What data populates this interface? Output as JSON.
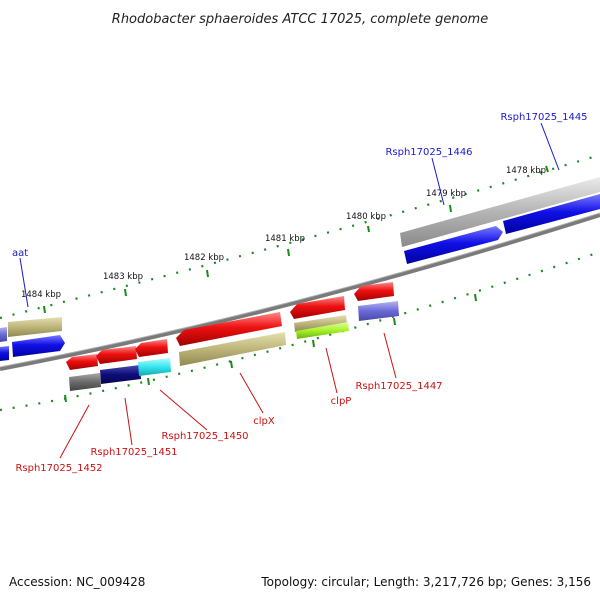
{
  "title": "Rhodobacter sphaeroides ATCC 17025, complete genome",
  "footer": {
    "accession": "Accession: NC_009428",
    "summary": "Topology: circular; Length: 3,217,726 bp; Genes: 3,156"
  },
  "scale_ticks": [
    "1478 kbp",
    "1479 kbp",
    "1480 kbp",
    "1481 kbp",
    "1482 kbp",
    "1483 kbp",
    "1484 kbp"
  ],
  "gene_labels": {
    "forward": [
      "aat",
      "Rsph17025_1446",
      "Rsph17025_1445"
    ],
    "reverse": [
      "Rsph17025_1452",
      "Rsph17025_1451",
      "Rsph17025_1450",
      "clpX",
      "clpP",
      "Rsph17025_1447"
    ]
  },
  "colors": {
    "forward_label": "#1a1ad0",
    "reverse_label": "#cc1111",
    "tick": "#1a8a1a",
    "backbone": "#7a7a7a",
    "cds": "#ee1111",
    "gene_blue": "#1010e6",
    "gene_olive": "#bdb57a",
    "gene_grey": "#b4b4b4",
    "gene_navy": "#0d0d7a",
    "gene_cyan": "#33e6ee",
    "gene_slate": "#6a6ad6",
    "gene_lime": "#a6f22a",
    "gene_darkgrey": "#6a6a6a"
  }
}
